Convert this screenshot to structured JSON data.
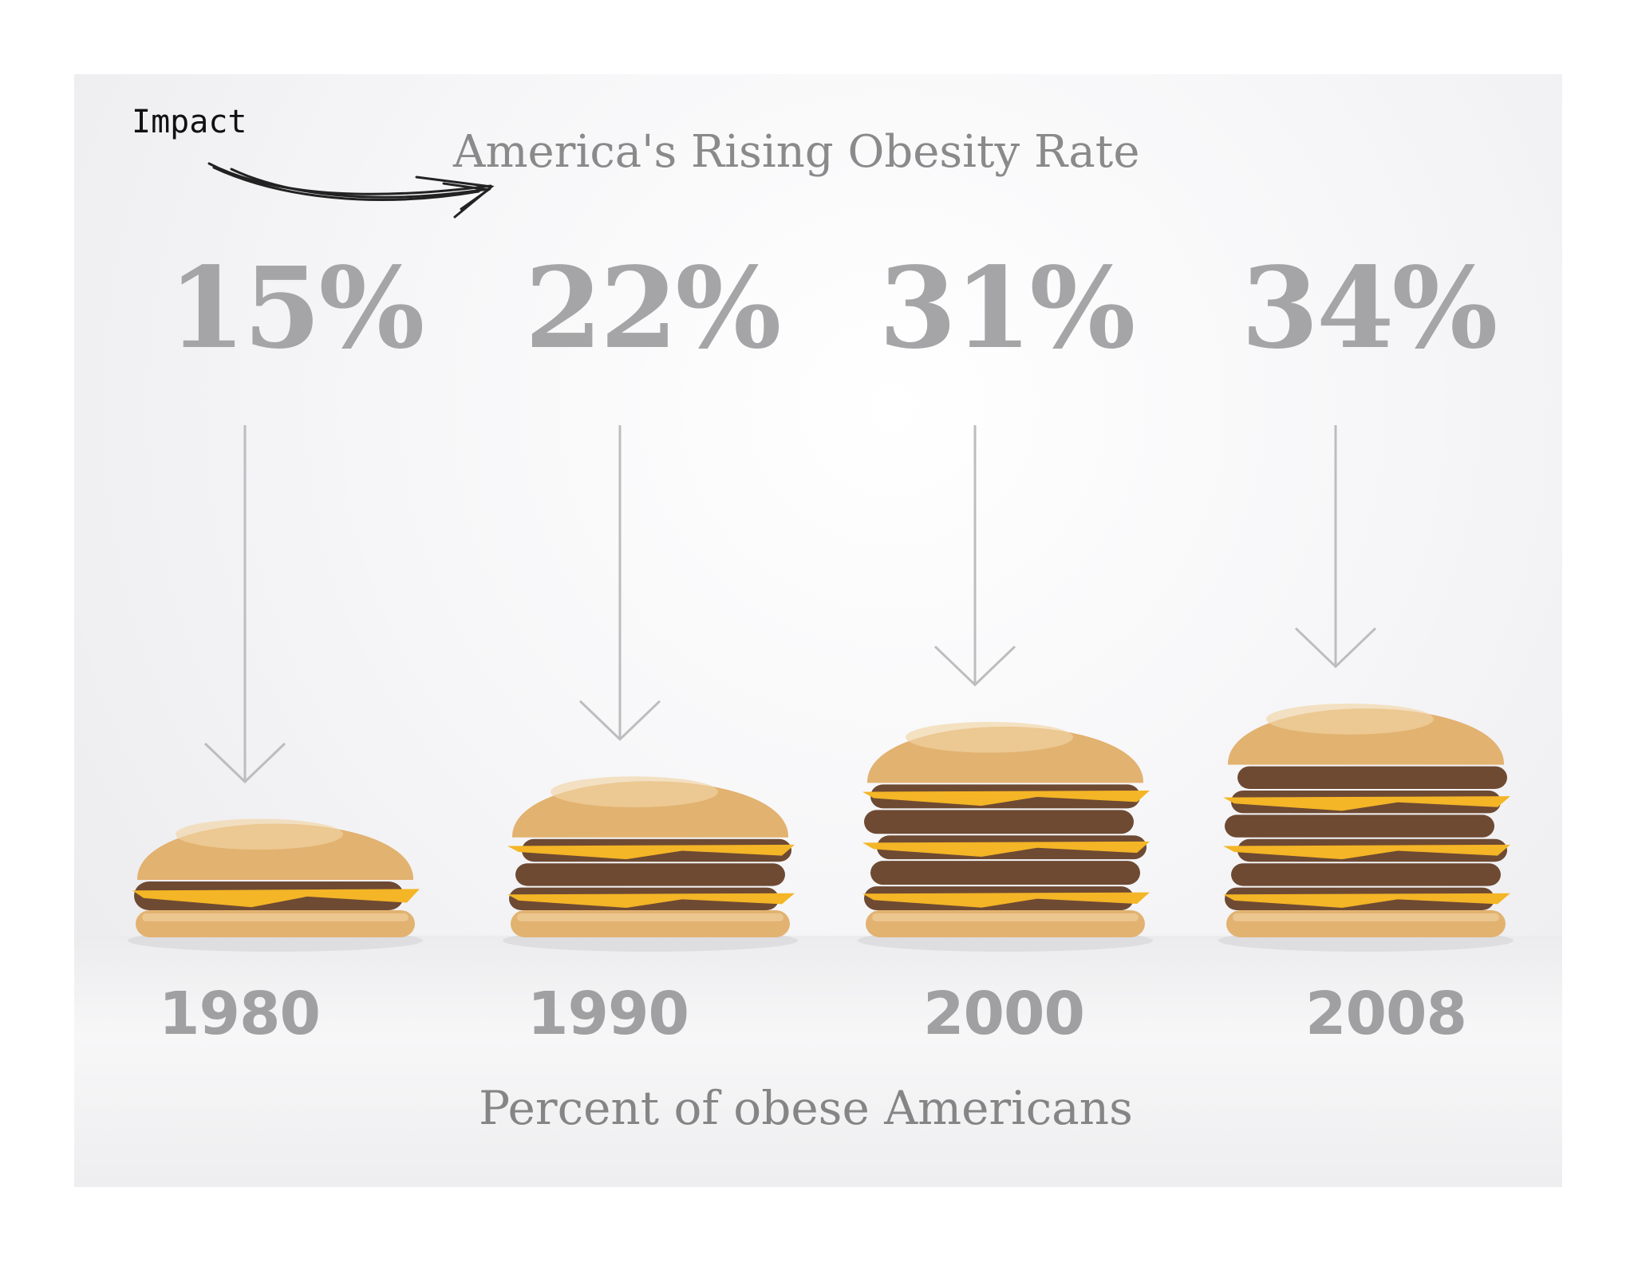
{
  "annotation": {
    "label": "Impact"
  },
  "chart_data": {
    "type": "bar",
    "title": "America's Rising Obesity Rate",
    "xlabel": "Percent of obese Americans",
    "ylabel": "",
    "categories": [
      "1980",
      "1990",
      "2000",
      "2008"
    ],
    "values": [
      15,
      22,
      31,
      34
    ],
    "value_labels": [
      "15%",
      "22%",
      "31%",
      "34%"
    ],
    "units": "%",
    "ylim": [
      0,
      40
    ],
    "marks": "burger-stacks"
  },
  "colors": {
    "text_gray": "#a5a5a7",
    "bun": "#e2b270",
    "bun_highlight": "#f1d4a4",
    "patty": "#6e4a33",
    "cheese": "#f4b526"
  }
}
